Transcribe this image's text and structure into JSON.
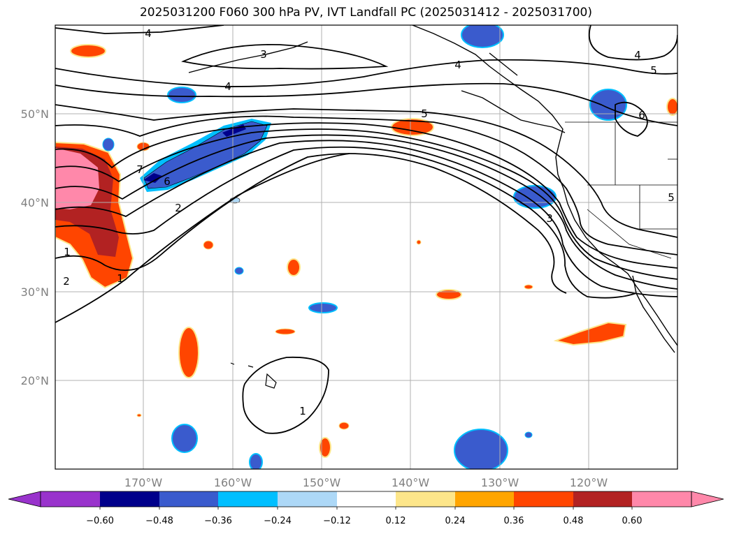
{
  "title": "2025031200 F060 300 hPa PV, IVT Landfall PC (2025031412 - 2025031700)",
  "lat_labels": [
    "50°N",
    "40°N",
    "30°N",
    "20°N"
  ],
  "lon_labels": [
    "170°W",
    "160°W",
    "150°W",
    "140°W",
    "130°W",
    "120°W"
  ],
  "contour_labels": [
    "4",
    "3",
    "4",
    "5",
    "4",
    "5",
    "6",
    "7",
    "6",
    "2",
    "3",
    "1",
    "2",
    "1",
    "1",
    "4",
    "5"
  ],
  "colorbar": {
    "ticks": [
      "−0.60",
      "−0.48",
      "−0.36",
      "−0.24",
      "−0.12",
      "0.12",
      "0.24",
      "0.36",
      "0.48",
      "0.60"
    ],
    "colors": [
      "#9933cc",
      "#00008b",
      "#3a5bcd",
      "#00bfff",
      "#add8f7",
      "#ffffff",
      "#fde68a",
      "#ffa500",
      "#ff4500",
      "#b22222",
      "#ff88aa"
    ]
  },
  "colors": {
    "neg_dark": "#00008b",
    "neg_mid": "#3a5bcd",
    "neg_light": "#00bfff",
    "pos_yellow": "#fde68a",
    "pos_orange": "#ffa500",
    "pos_red": "#ff4500",
    "pos_dark": "#b22222",
    "pos_pink": "#ff88aa"
  }
}
